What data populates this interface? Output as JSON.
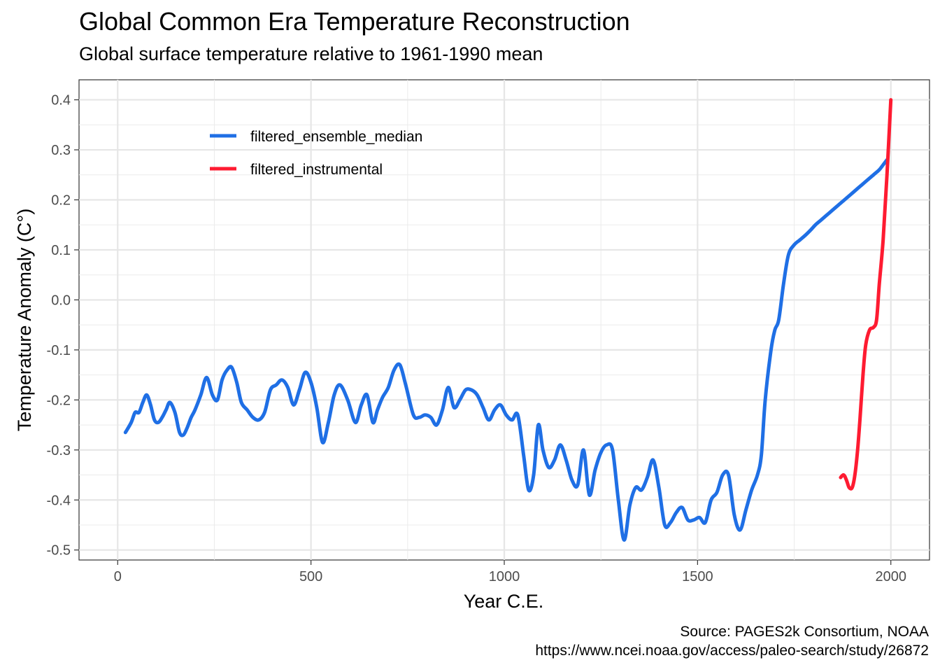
{
  "chart_data": {
    "type": "line",
    "title": "Global Common Era Temperature Reconstruction",
    "subtitle": "Global surface temperature relative to 1961-1990 mean",
    "xlabel": "Year C.E.",
    "ylabel": "Temperature Anomaly (C°)",
    "xlim": [
      -100,
      2100
    ],
    "ylim": [
      -0.52,
      0.44
    ],
    "x_ticks": [
      0,
      500,
      1000,
      1500,
      2000
    ],
    "x_tick_labels": [
      "0",
      "500",
      "1000",
      "1500",
      "2000"
    ],
    "y_ticks": [
      -0.5,
      -0.4,
      -0.3,
      -0.2,
      -0.1,
      0.0,
      0.1,
      0.2,
      0.3,
      0.4
    ],
    "y_tick_labels": [
      "-0.5",
      "-0.4",
      "-0.3",
      "-0.2",
      "-0.1",
      "0.0",
      "0.1",
      "0.2",
      "0.3",
      "0.4"
    ],
    "grid": true,
    "legend_position": "top-left inside",
    "series": [
      {
        "name": "filtered_ensemble_median",
        "color": "#1f6fe5",
        "x": [
          20,
          35,
          45,
          55,
          65,
          75,
          85,
          95,
          105,
          115,
          125,
          135,
          148,
          160,
          170,
          180,
          190,
          200,
          215,
          230,
          245,
          258,
          270,
          283,
          295,
          308,
          320,
          335,
          350,
          365,
          380,
          395,
          410,
          425,
          440,
          455,
          470,
          485,
          500,
          515,
          530,
          545,
          560,
          575,
          595,
          615,
          630,
          645,
          660,
          672,
          685,
          700,
          715,
          730,
          745,
          765,
          780,
          795,
          810,
          825,
          840,
          855,
          870,
          885,
          900,
          915,
          930,
          945,
          960,
          975,
          990,
          1005,
          1020,
          1035,
          1050,
          1063,
          1076,
          1088,
          1100,
          1115,
          1130,
          1145,
          1160,
          1175,
          1190,
          1205,
          1220,
          1235,
          1250,
          1265,
          1280,
          1295,
          1310,
          1325,
          1340,
          1355,
          1370,
          1385,
          1400,
          1415,
          1430,
          1445,
          1460,
          1475,
          1490,
          1505,
          1520,
          1535,
          1550,
          1565,
          1580,
          1595,
          1610,
          1625,
          1640,
          1655,
          1665,
          1675,
          1690,
          1700,
          1710,
          1722,
          1735,
          1750,
          1765,
          1780,
          1793,
          1805,
          1820,
          1835,
          1850,
          1865,
          1880,
          1895,
          1910,
          1925,
          1940,
          1955,
          1970,
          1980,
          1990
        ],
        "y": [
          -0.265,
          -0.245,
          -0.225,
          -0.225,
          -0.205,
          -0.19,
          -0.21,
          -0.24,
          -0.245,
          -0.235,
          -0.22,
          -0.205,
          -0.225,
          -0.265,
          -0.27,
          -0.255,
          -0.235,
          -0.22,
          -0.19,
          -0.155,
          -0.19,
          -0.2,
          -0.16,
          -0.14,
          -0.135,
          -0.165,
          -0.205,
          -0.22,
          -0.235,
          -0.24,
          -0.225,
          -0.18,
          -0.17,
          -0.16,
          -0.175,
          -0.21,
          -0.18,
          -0.145,
          -0.165,
          -0.215,
          -0.285,
          -0.245,
          -0.19,
          -0.17,
          -0.2,
          -0.245,
          -0.21,
          -0.19,
          -0.245,
          -0.22,
          -0.195,
          -0.175,
          -0.14,
          -0.13,
          -0.17,
          -0.23,
          -0.235,
          -0.23,
          -0.235,
          -0.25,
          -0.22,
          -0.175,
          -0.215,
          -0.2,
          -0.18,
          -0.18,
          -0.19,
          -0.215,
          -0.24,
          -0.22,
          -0.21,
          -0.23,
          -0.24,
          -0.23,
          -0.31,
          -0.38,
          -0.35,
          -0.25,
          -0.3,
          -0.335,
          -0.32,
          -0.29,
          -0.32,
          -0.36,
          -0.37,
          -0.3,
          -0.39,
          -0.34,
          -0.305,
          -0.29,
          -0.3,
          -0.4,
          -0.48,
          -0.41,
          -0.375,
          -0.38,
          -0.355,
          -0.32,
          -0.375,
          -0.45,
          -0.445,
          -0.425,
          -0.415,
          -0.44,
          -0.44,
          -0.435,
          -0.445,
          -0.4,
          -0.385,
          -0.35,
          -0.35,
          -0.43,
          -0.46,
          -0.42,
          -0.38,
          -0.35,
          -0.31,
          -0.2,
          -0.1,
          -0.06,
          -0.04,
          0.03,
          0.09,
          0.11,
          0.12,
          0.13,
          0.14,
          0.15,
          0.16,
          0.17,
          0.18,
          0.19,
          0.2,
          0.21,
          0.22,
          0.23,
          0.24,
          0.25,
          0.26,
          0.27,
          0.28
        ]
      },
      {
        "name": "filtered_instrumental",
        "color": "#fe1b31",
        "x": [
          1870,
          1878,
          1885,
          1892,
          1900,
          1907,
          1914,
          1920,
          1928,
          1935,
          1945,
          1955,
          1963,
          1970,
          1980,
          1990,
          2000
        ],
        "y": [
          -0.355,
          -0.35,
          -0.36,
          -0.375,
          -0.375,
          -0.35,
          -0.3,
          -0.24,
          -0.15,
          -0.09,
          -0.06,
          -0.055,
          -0.04,
          0.03,
          0.12,
          0.25,
          0.4
        ]
      }
    ]
  },
  "caption": {
    "line1": "Source: PAGES2k Consortium, NOAA",
    "line2": "https://www.ncei.noaa.gov/access/paleo-search/study/26872"
  }
}
